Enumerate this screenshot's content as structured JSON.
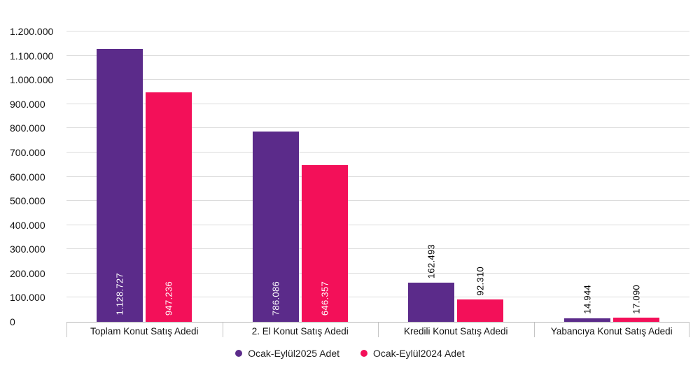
{
  "chart_data": {
    "type": "bar",
    "title": "",
    "categories": [
      "Toplam Konut Satış Adedi",
      "2. El Konut Satış Adedi",
      "Kredili Konut Satış Adedi",
      "Yabancıya Konut Satış Adedi"
    ],
    "series": [
      {
        "name": "Ocak-Eylül2025 Adet",
        "color": "#5b2b8a",
        "values": [
          1128727,
          786086,
          162493,
          14944
        ],
        "labels": [
          "1.128.727",
          "786.086",
          "162.493",
          "14.944"
        ]
      },
      {
        "name": "Ocak-Eylül2024 Adet",
        "color": "#f31059",
        "values": [
          947236,
          646357,
          92310,
          17090
        ],
        "labels": [
          "947.236",
          "646.357",
          "92.310",
          "17.090"
        ]
      }
    ],
    "ylim": [
      0,
      1200000
    ],
    "y_ticks": [
      "0",
      "100.000",
      "200.000",
      "300.000",
      "400.000",
      "500.000",
      "600.000",
      "700.000",
      "800.000",
      "900.000",
      "1.000.000",
      "1.100.000",
      "1.200.000"
    ],
    "grid": true,
    "legend_position": "bottom",
    "bar_label_rotation": "vertical"
  }
}
